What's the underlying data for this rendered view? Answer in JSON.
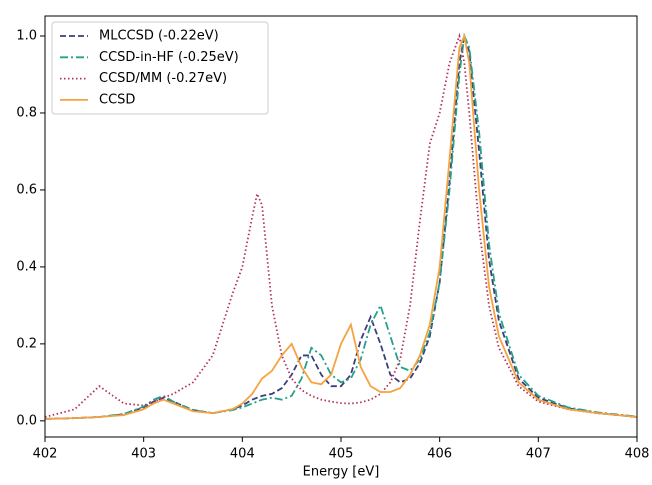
{
  "chart_data": {
    "type": "line",
    "xlabel": "Energy [eV]",
    "xlim": [
      402,
      408
    ],
    "ylim": [
      -0.042,
      1.052
    ],
    "xticks": [
      402,
      403,
      404,
      405,
      406,
      407,
      408
    ],
    "yticks": [
      {
        "value": 0,
        "label": "0.0"
      },
      0.2,
      0.4,
      0.6,
      0.8,
      {
        "value": 1,
        "label": "1.0"
      }
    ],
    "legend": "upper left",
    "x": [
      402,
      402.3,
      402.55,
      402.8,
      403.0,
      403.1,
      403.2,
      403.3,
      403.5,
      403.7,
      403.9,
      404.0,
      404.1,
      404.15,
      404.2,
      404.3,
      404.4,
      404.5,
      404.6,
      404.7,
      404.8,
      404.9,
      405.0,
      405.1,
      405.2,
      405.3,
      405.4,
      405.5,
      405.6,
      405.7,
      405.8,
      405.9,
      406.0,
      406.1,
      406.2,
      406.25,
      406.3,
      406.4,
      406.5,
      406.6,
      406.8,
      407.0,
      407.3,
      407.6,
      408.0
    ],
    "series": [
      {
        "name": "MLCCSD (-0.22eV)",
        "color": "#3a3f7c",
        "linestyle": "dashed",
        "values": [
          0.005,
          0.007,
          0.01,
          0.017,
          0.035,
          0.05,
          0.06,
          0.05,
          0.028,
          0.02,
          0.03,
          0.04,
          0.055,
          0.06,
          0.065,
          0.07,
          0.085,
          0.12,
          0.17,
          0.17,
          0.12,
          0.09,
          0.09,
          0.12,
          0.21,
          0.27,
          0.2,
          0.12,
          0.1,
          0.11,
          0.15,
          0.22,
          0.36,
          0.62,
          0.93,
          1.0,
          0.96,
          0.7,
          0.42,
          0.26,
          0.11,
          0.06,
          0.033,
          0.02,
          0.01
        ]
      },
      {
        "name": "CCSD-in-HF (-0.25eV)",
        "color": "#26a08a",
        "linestyle": "dashdot",
        "values": [
          0.005,
          0.007,
          0.01,
          0.018,
          0.037,
          0.055,
          0.065,
          0.05,
          0.028,
          0.02,
          0.028,
          0.035,
          0.045,
          0.05,
          0.055,
          0.06,
          0.055,
          0.065,
          0.11,
          0.19,
          0.17,
          0.12,
          0.1,
          0.11,
          0.16,
          0.25,
          0.3,
          0.22,
          0.14,
          0.13,
          0.16,
          0.23,
          0.36,
          0.6,
          0.9,
          1.0,
          0.97,
          0.75,
          0.46,
          0.28,
          0.12,
          0.065,
          0.035,
          0.022,
          0.011
        ]
      },
      {
        "name": "CCSD/MM (-0.27eV)",
        "color": "#b2325c",
        "linestyle": "dotted",
        "values": [
          0.01,
          0.03,
          0.09,
          0.045,
          0.04,
          0.05,
          0.06,
          0.07,
          0.1,
          0.17,
          0.33,
          0.4,
          0.53,
          0.59,
          0.56,
          0.3,
          0.17,
          0.11,
          0.08,
          0.065,
          0.055,
          0.05,
          0.046,
          0.045,
          0.048,
          0.055,
          0.07,
          0.1,
          0.16,
          0.3,
          0.52,
          0.72,
          0.8,
          0.93,
          1.0,
          0.93,
          0.8,
          0.5,
          0.3,
          0.19,
          0.09,
          0.05,
          0.03,
          0.02,
          0.01
        ]
      },
      {
        "name": "CCSD",
        "color": "#f5a340",
        "linestyle": "solid",
        "values": [
          0.005,
          0.007,
          0.01,
          0.015,
          0.03,
          0.045,
          0.055,
          0.045,
          0.025,
          0.02,
          0.03,
          0.045,
          0.07,
          0.09,
          0.11,
          0.13,
          0.17,
          0.2,
          0.14,
          0.1,
          0.095,
          0.12,
          0.2,
          0.25,
          0.14,
          0.09,
          0.075,
          0.075,
          0.085,
          0.12,
          0.17,
          0.25,
          0.4,
          0.68,
          0.97,
          1.0,
          0.93,
          0.6,
          0.35,
          0.22,
          0.1,
          0.055,
          0.03,
          0.02,
          0.01
        ]
      }
    ]
  }
}
